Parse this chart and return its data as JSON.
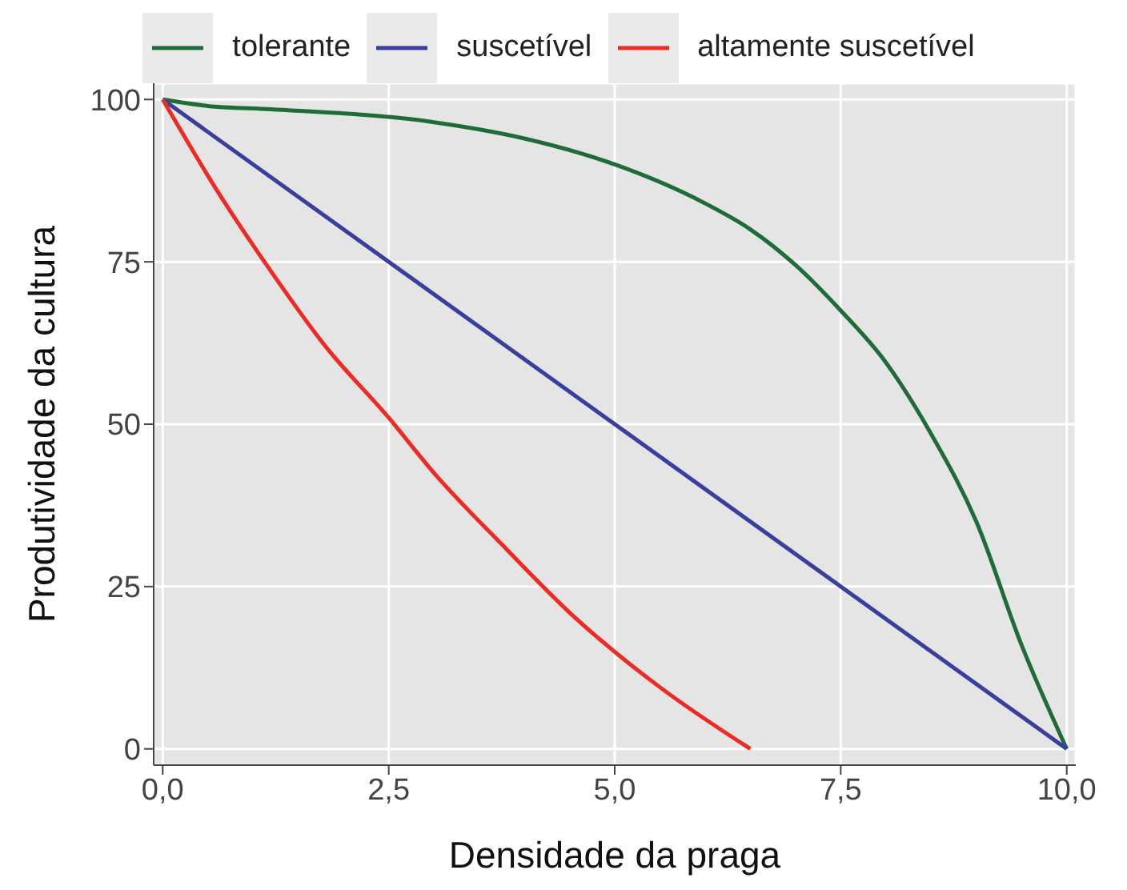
{
  "chart_data": {
    "type": "line",
    "xlabel": "Densidade da praga",
    "ylabel": "Produtividade da cultura",
    "xlim": [
      -0.1,
      10.1
    ],
    "ylim": [
      -2.5,
      102.5
    ],
    "xticks": [
      {
        "value": 0,
        "label": "0,0"
      },
      {
        "value": 2.5,
        "label": "2,5"
      },
      {
        "value": 5,
        "label": "5,0"
      },
      {
        "value": 7.5,
        "label": "7,5"
      },
      {
        "value": 10,
        "label": "10,0"
      }
    ],
    "yticks": [
      0,
      25,
      50,
      75,
      100
    ],
    "grid": true,
    "legend": "top",
    "marker": "none",
    "line_style": "solid",
    "series": [
      {
        "name": "tolerante",
        "color": "#1f6b3a",
        "x": [
          0,
          0.5,
          1.2,
          3,
          4,
          5,
          6,
          6.5,
          7,
          7.5,
          8,
          8.5,
          9,
          9.5,
          10
        ],
        "values": [
          100,
          99,
          98.5,
          96.5,
          94,
          90,
          84,
          80,
          74.5,
          67.5,
          59.5,
          48.5,
          35,
          16,
          0
        ]
      },
      {
        "name": "suscetível",
        "color": "#3a3f9e",
        "x": [
          0,
          10
        ],
        "values": [
          100,
          0
        ]
      },
      {
        "name": "altamente suscetível",
        "color": "#ee2a24",
        "x": [
          0,
          0.6,
          1.2,
          1.8,
          2.5,
          3,
          3.75,
          4.5,
          5.5,
          6.5
        ],
        "values": [
          100,
          86,
          73.5,
          62,
          51,
          42.5,
          31.5,
          21,
          9.5,
          0
        ]
      }
    ]
  }
}
